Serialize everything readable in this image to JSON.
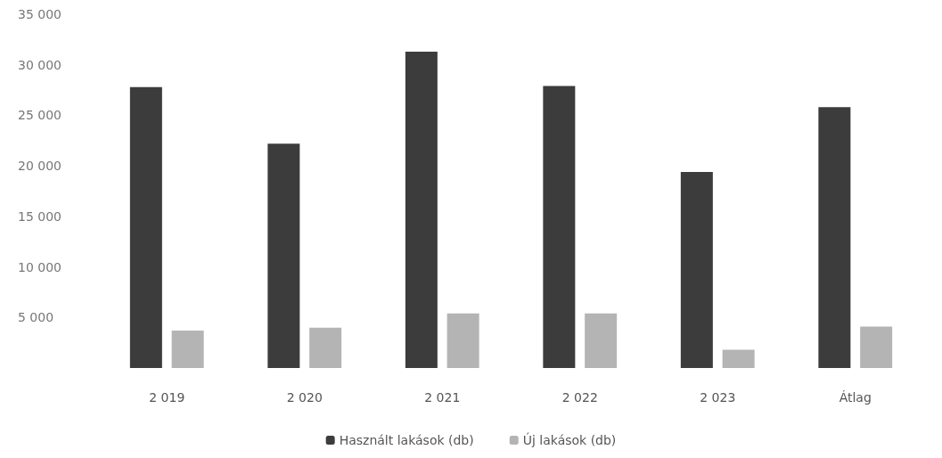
{
  "chart_data": {
    "type": "bar",
    "categories": [
      "2 019",
      "2 020",
      "2 021",
      "2 022",
      "2 023",
      "Átlag"
    ],
    "series": [
      {
        "name": "Használt lakások (db)",
        "color": "#3c3c3c",
        "values": [
          27800,
          22200,
          31300,
          27900,
          19400,
          25800
        ]
      },
      {
        "name": "Új lakások (db)",
        "color": "#b4b4b4",
        "values": [
          3700,
          4000,
          5400,
          5400,
          1800,
          4100
        ]
      }
    ],
    "ylim": [
      0,
      35000
    ],
    "yticks": [
      {
        "value": 5000,
        "label": "5 000"
      },
      {
        "value": 10000,
        "label": "10 000"
      },
      {
        "value": 15000,
        "label": "15 000"
      },
      {
        "value": 20000,
        "label": "20 000"
      },
      {
        "value": 25000,
        "label": "25 000"
      },
      {
        "value": 30000,
        "label": "30 000"
      },
      {
        "value": 35000,
        "label": "35 000"
      }
    ],
    "grid": false,
    "legend": "bottom"
  }
}
